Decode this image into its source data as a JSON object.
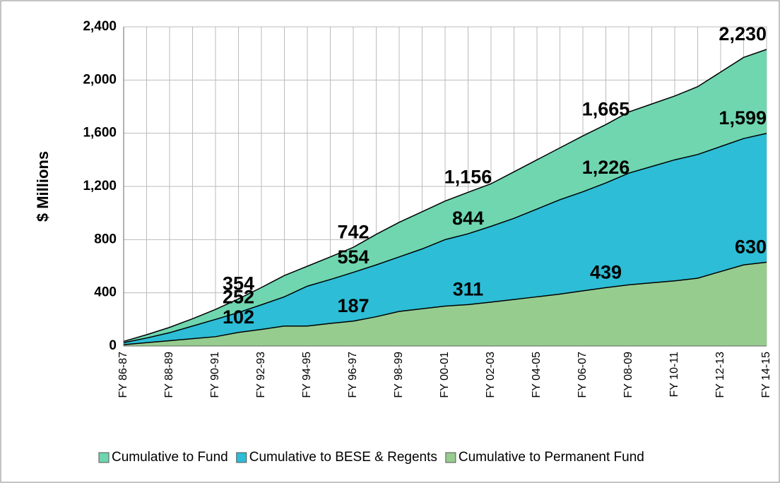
{
  "chart_data": {
    "type": "area",
    "y_label": "$ Millions",
    "categories": [
      "FY 86-87",
      null,
      "FY 88-89",
      null,
      "FY 90-91",
      null,
      "FY 92-93",
      null,
      "FY 94-95",
      null,
      "FY 96-97",
      null,
      "FY 98-99",
      null,
      "FY 00-01",
      null,
      "FY 02-03",
      null,
      "FY 04-05",
      null,
      "FY 06-07",
      null,
      "FY 08-09",
      null,
      "FY 10-11",
      null,
      "FY 12-13",
      null,
      "FY 14-15"
    ],
    "ylim": [
      0,
      2400
    ],
    "yticks": [
      0,
      400,
      800,
      {
        "value": 1200,
        "label": "1,200"
      },
      {
        "value": 1600,
        "label": "1,600"
      },
      {
        "value": 2000,
        "label": "2,000"
      },
      {
        "value": 2400,
        "label": "2,400"
      }
    ],
    "grid": true,
    "legend": "bottom",
    "series": [
      {
        "name": "Cumulative to Fund",
        "color": "#6fd6b0",
        "values": [
          35,
          85,
          140,
          205,
          275,
          354,
          440,
          530,
          600,
          670,
          742,
          840,
          930,
          1010,
          1090,
          1156,
          1220,
          1310,
          1400,
          1490,
          1580,
          1665,
          1760,
          1820,
          1880,
          1950,
          2060,
          2170,
          2230
        ],
        "value_labels": [
          null,
          null,
          null,
          null,
          null,
          "354",
          null,
          null,
          null,
          null,
          "742",
          null,
          null,
          null,
          null,
          "1,156",
          null,
          null,
          null,
          null,
          null,
          "1,665",
          null,
          null,
          null,
          null,
          null,
          null,
          "2,230"
        ]
      },
      {
        "name": "Cumulative to BESE & Regents",
        "color": "#2dbdd6",
        "values": [
          25,
          60,
          100,
          150,
          200,
          252,
          310,
          370,
          450,
          500,
          554,
          610,
          670,
          730,
          800,
          844,
          900,
          960,
          1030,
          1100,
          1160,
          1226,
          1300,
          1350,
          1400,
          1440,
          1500,
          1560,
          1599
        ],
        "value_labels": [
          null,
          null,
          null,
          null,
          null,
          "252",
          null,
          null,
          null,
          null,
          "554",
          null,
          null,
          null,
          null,
          "844",
          null,
          null,
          null,
          null,
          null,
          "1,226",
          null,
          null,
          null,
          null,
          null,
          null,
          "1,599"
        ]
      },
      {
        "name": "Cumulative to Permanent Fund",
        "color": "#97cc8f",
        "values": [
          10,
          25,
          40,
          55,
          70,
          102,
          125,
          150,
          150,
          170,
          187,
          220,
          260,
          280,
          300,
          311,
          330,
          350,
          370,
          390,
          415,
          439,
          460,
          475,
          490,
          510,
          560,
          610,
          630
        ],
        "value_labels": [
          null,
          null,
          null,
          null,
          null,
          "102",
          null,
          null,
          null,
          null,
          "187",
          null,
          null,
          null,
          null,
          "311",
          null,
          null,
          null,
          null,
          null,
          "439",
          null,
          null,
          null,
          null,
          null,
          null,
          "630"
        ]
      }
    ]
  }
}
